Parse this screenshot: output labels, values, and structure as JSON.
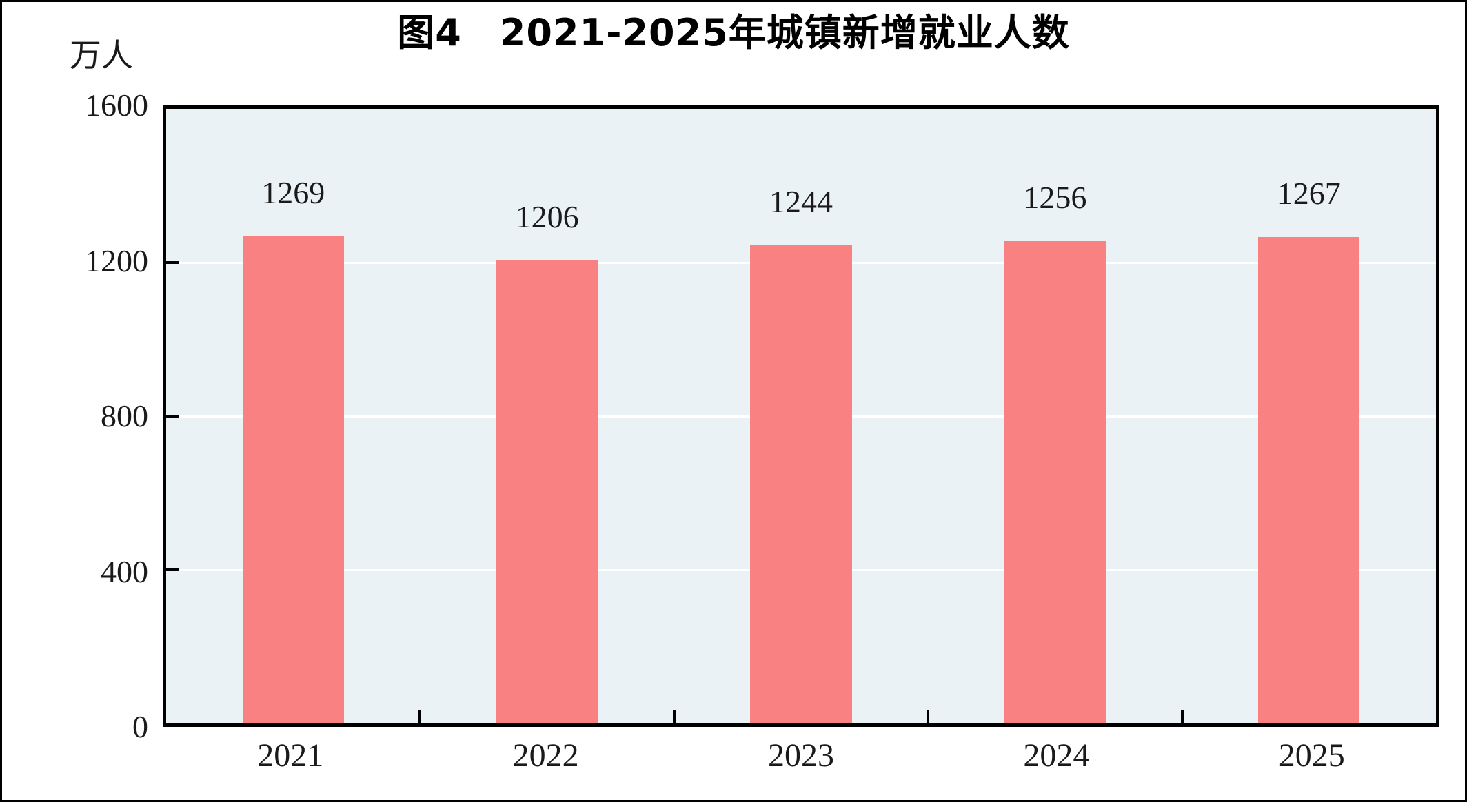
{
  "title": "图4　2021-2025年城镇新增就业人数",
  "unit_label": "万人",
  "colors": {
    "bar": "#f98181",
    "plot_bg": "#eaf2f6",
    "grid": "#ffffff",
    "frame": "#000000",
    "text": "#1a1a1a"
  },
  "chart_data": {
    "type": "bar",
    "title": "图4　2021-2025年城镇新增就业人数",
    "categories": [
      "2021",
      "2022",
      "2023",
      "2024",
      "2025"
    ],
    "values": [
      1269,
      1206,
      1244,
      1256,
      1267
    ],
    "bar_labels": [
      1269,
      1206,
      1244,
      1256,
      1267
    ],
    "xlabel": "",
    "ylabel": "万人",
    "ylim": [
      0,
      1600
    ],
    "yticks": [
      0,
      400,
      800,
      1200,
      1600
    ],
    "grid": "horizontal-white",
    "legend_position": "none"
  }
}
